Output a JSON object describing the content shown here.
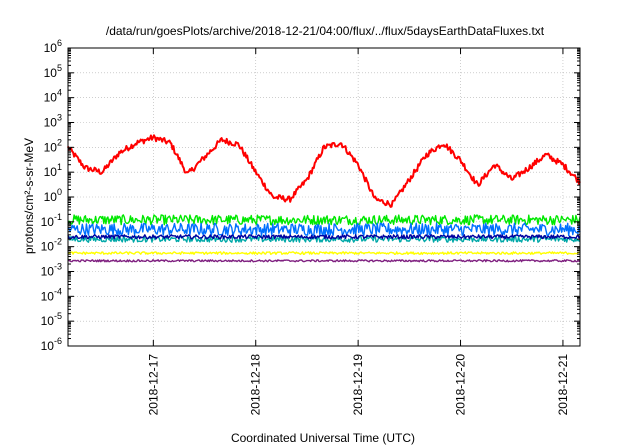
{
  "chart_data": {
    "type": "line",
    "title": "/data/run/goesPlots/archive/2018-12-21/04:00/flux/../flux/5daysEarthDataFluxes.txt",
    "xlabel": "Coordinated Universal Time (UTC)",
    "ylabel": "protons/cm²-s-sr-MeV",
    "yscale": "log",
    "ylim": [
      1e-06,
      1000000.0
    ],
    "xlim_days": [
      "2018-12-16 04:00",
      "2018-12-21 04:00"
    ],
    "grid": true,
    "legend": "none",
    "y_ticks": [
      {
        "value": 1000000.0,
        "base": "10",
        "exp": "6"
      },
      {
        "value": 100000.0,
        "base": "10",
        "exp": "5"
      },
      {
        "value": 10000.0,
        "base": "10",
        "exp": "4"
      },
      {
        "value": 1000.0,
        "base": "10",
        "exp": "3"
      },
      {
        "value": 100.0,
        "base": "10",
        "exp": "2"
      },
      {
        "value": 10.0,
        "base": "10",
        "exp": "1"
      },
      {
        "value": 1.0,
        "base": "10",
        "exp": "0"
      },
      {
        "value": 0.1,
        "base": "10",
        "exp": "-1"
      },
      {
        "value": 0.01,
        "base": "10",
        "exp": "-2"
      },
      {
        "value": 0.001,
        "base": "10",
        "exp": "-3"
      },
      {
        "value": 0.0001,
        "base": "10",
        "exp": "-4"
      },
      {
        "value": 1e-05,
        "base": "10",
        "exp": "-5"
      },
      {
        "value": 1e-06,
        "base": "10",
        "exp": "-6"
      }
    ],
    "x_ticks": [
      "2018-12-17",
      "2018-12-18",
      "2018-12-19",
      "2018-12-20",
      "2018-12-21"
    ],
    "series": [
      {
        "color": "#ff0000",
        "x": [
          "2018-12-16 04:00",
          "2018-12-16 08:00",
          "2018-12-16 12:00",
          "2018-12-16 16:00",
          "2018-12-16 20:00",
          "2018-12-17 00:00",
          "2018-12-17 04:00",
          "2018-12-17 08:00",
          "2018-12-17 12:00",
          "2018-12-17 16:00",
          "2018-12-17 20:00",
          "2018-12-18 00:00",
          "2018-12-18 04:00",
          "2018-12-18 08:00",
          "2018-12-18 12:00",
          "2018-12-18 16:00",
          "2018-12-18 20:00",
          "2018-12-19 00:00",
          "2018-12-19 04:00",
          "2018-12-19 08:00",
          "2018-12-19 12:00",
          "2018-12-19 16:00",
          "2018-12-19 20:00",
          "2018-12-20 00:00",
          "2018-12-20 04:00",
          "2018-12-20 08:00",
          "2018-12-20 12:00",
          "2018-12-20 16:00",
          "2018-12-20 20:00",
          "2018-12-21 00:00",
          "2018-12-21 04:00"
        ],
        "y": [
          100,
          15,
          10,
          60,
          150,
          250,
          150,
          8,
          40,
          200,
          130,
          10,
          1,
          0.8,
          5,
          100,
          150,
          20,
          0.8,
          0.5,
          5,
          50,
          150,
          30,
          3,
          20,
          5,
          15,
          50,
          20,
          4
        ]
      },
      {
        "color": "#00e800",
        "x": [
          "2018-12-16 04:00",
          "2018-12-21 04:00"
        ],
        "y": [
          0.12,
          0.12
        ],
        "spread": 0.2
      },
      {
        "color": "#0070ff",
        "x": [
          "2018-12-16 04:00",
          "2018-12-21 04:00"
        ],
        "y": [
          0.05,
          0.05
        ],
        "spread": 0.25
      },
      {
        "color": "#00a8a8",
        "x": [
          "2018-12-16 04:00",
          "2018-12-21 04:00"
        ],
        "y": [
          0.02,
          0.02
        ],
        "spread": 0.12
      },
      {
        "color": "#0000a0",
        "x": [
          "2018-12-16 04:00",
          "2018-12-21 04:00"
        ],
        "y": [
          0.025,
          0.025
        ],
        "spread": 0.08
      },
      {
        "color": "#ffff00",
        "x": [
          "2018-12-16 04:00",
          "2018-12-21 04:00"
        ],
        "y": [
          0.0055,
          0.0055
        ],
        "spread": 0.05
      },
      {
        "color": "#7f2080",
        "x": [
          "2018-12-16 04:00",
          "2018-12-21 04:00"
        ],
        "y": [
          0.0027,
          0.0027
        ],
        "spread": 0.04
      }
    ]
  }
}
